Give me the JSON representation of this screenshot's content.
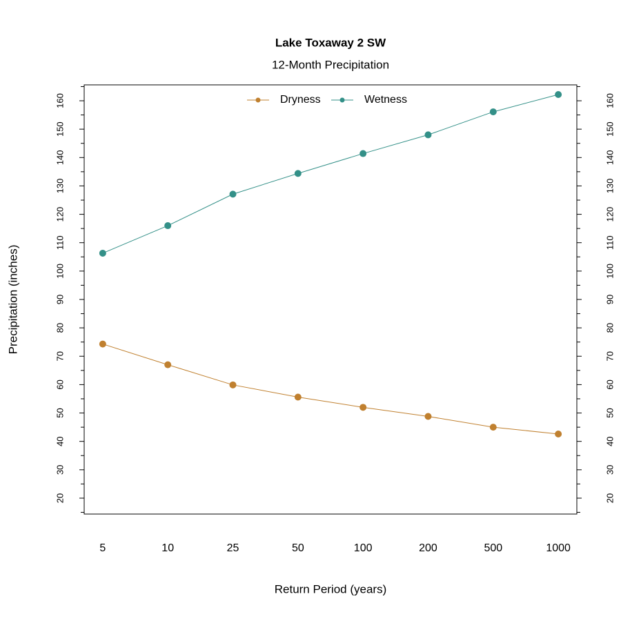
{
  "chart_data": {
    "type": "line",
    "title": "Lake Toxaway 2 SW",
    "subtitle": "12-Month Precipitation",
    "x_label": "Return Period (years)",
    "y_label": "Precipitation (inches)",
    "categories": [
      "5",
      "10",
      "25",
      "50",
      "100",
      "200",
      "500",
      "1000"
    ],
    "series": [
      {
        "name": "Dryness",
        "color": "#c0802f",
        "values": [
          74.3,
          67.0,
          59.9,
          55.6,
          52.0,
          48.8,
          45.0,
          42.6
        ]
      },
      {
        "name": "Wetness",
        "color": "#339088",
        "values": [
          106.3,
          116.0,
          127.1,
          134.4,
          141.4,
          148.0,
          156.1,
          162.2
        ]
      }
    ],
    "ylim": [
      14.4,
      165.6
    ],
    "yticks": [
      20,
      30,
      40,
      50,
      60,
      70,
      80,
      90,
      100,
      110,
      120,
      130,
      140,
      150,
      160
    ],
    "yminorticks": [
      15,
      25,
      35,
      45,
      55,
      65,
      75,
      85,
      95,
      105,
      115,
      125,
      135,
      145,
      155,
      165
    ],
    "legend": "top"
  }
}
